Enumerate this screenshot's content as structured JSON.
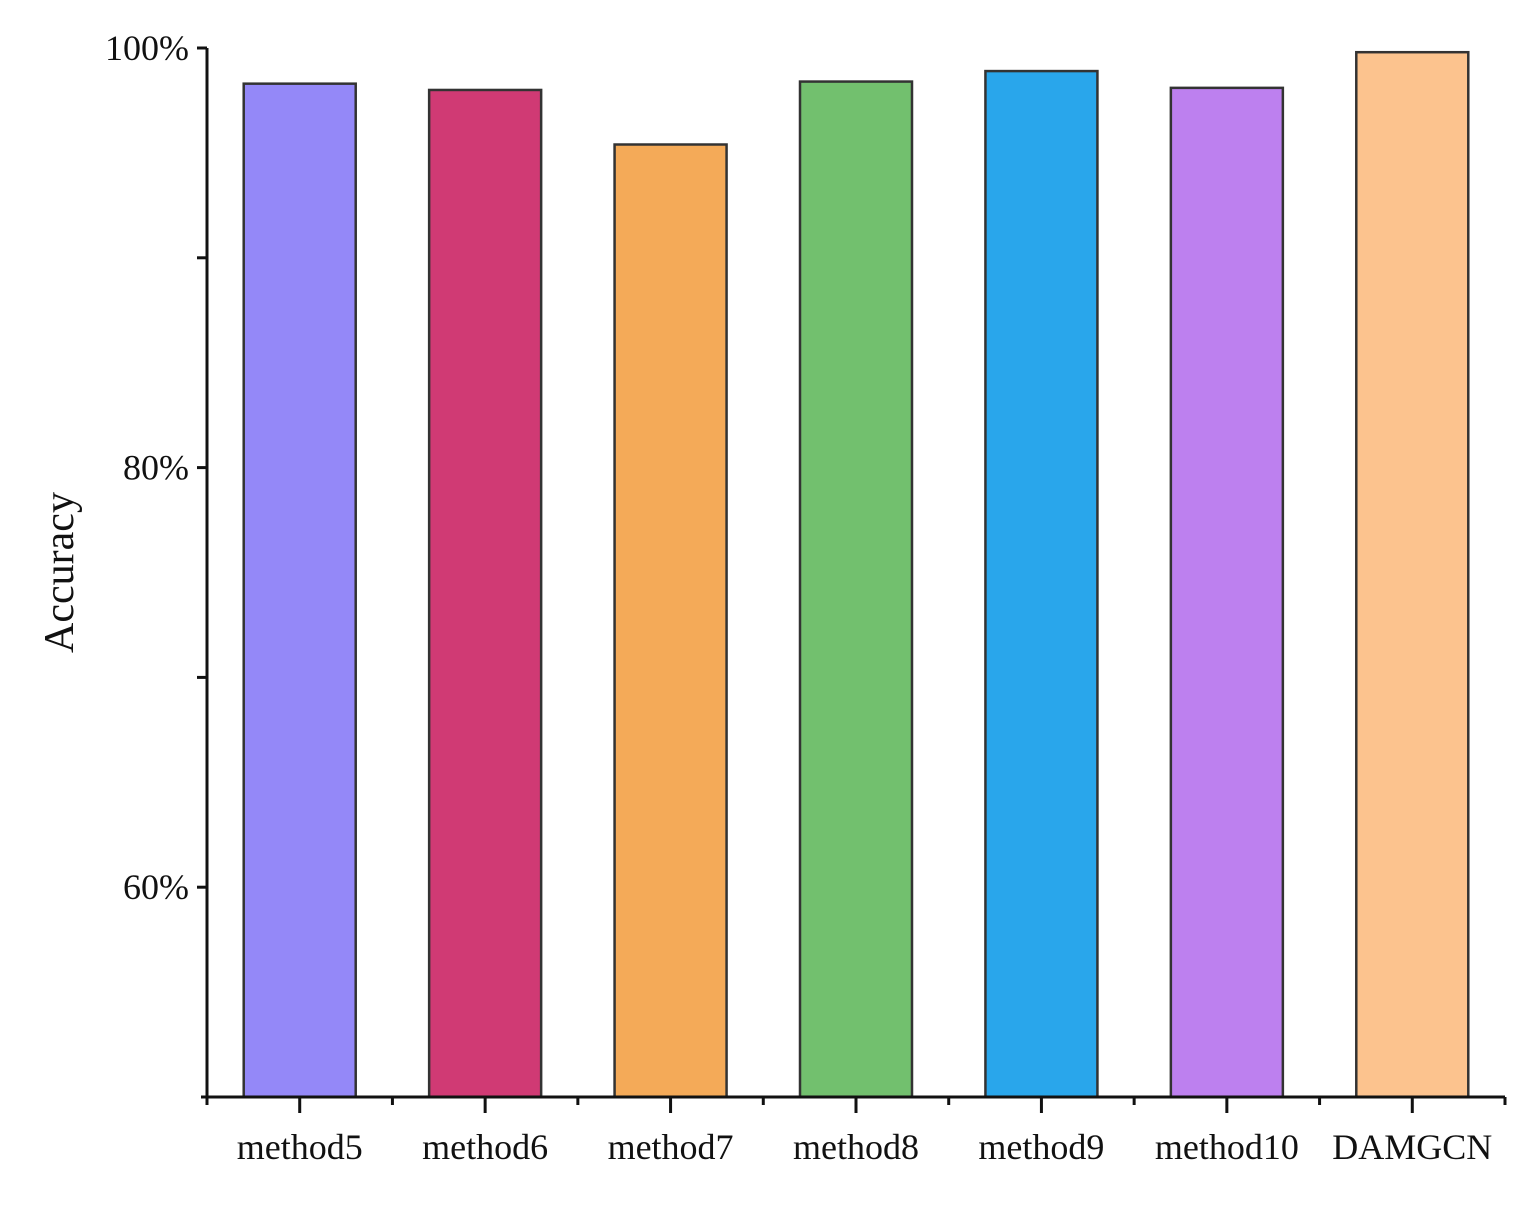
{
  "chart_data": {
    "type": "bar",
    "title": "",
    "xlabel": "",
    "ylabel": "Accuracy",
    "ylim": [
      50,
      100
    ],
    "yticks": [
      {
        "value": 100,
        "label": "100%"
      },
      {
        "value": 90,
        "label": ""
      },
      {
        "value": 80,
        "label": "80%"
      },
      {
        "value": 70,
        "label": ""
      },
      {
        "value": 60,
        "label": "60%"
      }
    ],
    "categories": [
      "method5",
      "method6",
      "method7",
      "method8",
      "method9",
      "method10",
      "DAMGCN"
    ],
    "values": [
      98.3,
      98.0,
      95.4,
      98.4,
      98.9,
      98.1,
      99.8
    ],
    "colors": [
      "#9488F8",
      "#D03A74",
      "#F4AA58",
      "#72C06E",
      "#29A6EB",
      "#BD80EF",
      "#FCC38E"
    ],
    "grid": false,
    "legend": "none"
  }
}
